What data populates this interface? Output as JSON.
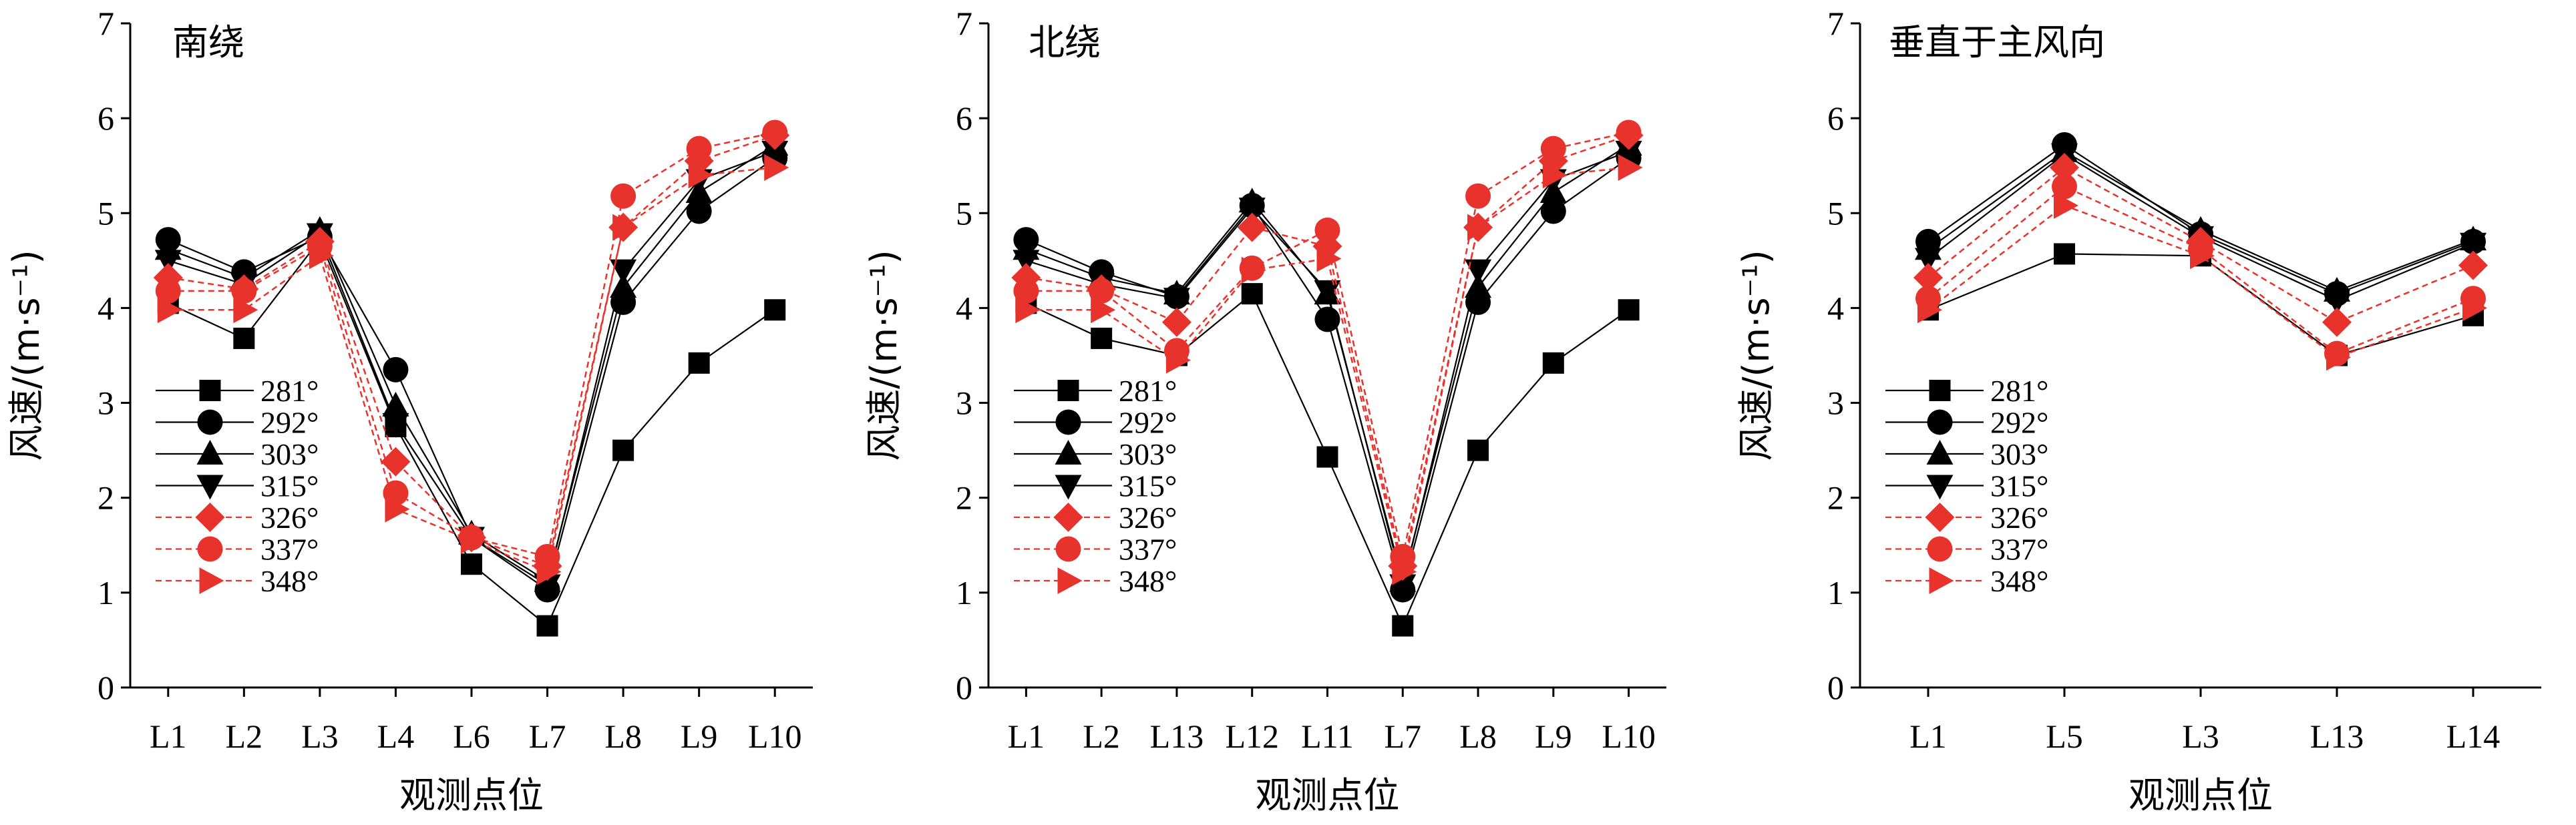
{
  "chart_data": [
    {
      "type": "line",
      "title": "南绕",
      "xlabel": "观测点位",
      "ylabel": "风速/(m·s⁻¹)",
      "ylim": [
        0,
        7
      ],
      "yticks": [
        0,
        1,
        2,
        3,
        4,
        5,
        6,
        7
      ],
      "categories": [
        "L1",
        "L2",
        "L3",
        "L4",
        "L6",
        "L7",
        "L8",
        "L9",
        "L10"
      ],
      "legend_position": "center-left",
      "series": [
        {
          "name": "281°",
          "color": "#000000",
          "marker": "square",
          "values": [
            4.05,
            3.68,
            4.72,
            2.75,
            1.3,
            0.65,
            2.5,
            3.42,
            3.98
          ]
        },
        {
          "name": "292°",
          "color": "#000000",
          "marker": "circle",
          "values": [
            4.72,
            4.38,
            4.75,
            3.35,
            1.58,
            1.03,
            4.06,
            5.02,
            5.58
          ]
        },
        {
          "name": "303°",
          "color": "#000000",
          "marker": "triangle-up",
          "values": [
            4.62,
            4.32,
            4.82,
            2.97,
            1.62,
            1.12,
            4.22,
            5.22,
            5.72
          ]
        },
        {
          "name": "315°",
          "color": "#000000",
          "marker": "triangle-down",
          "values": [
            4.5,
            4.25,
            4.78,
            2.78,
            1.58,
            1.08,
            4.4,
            5.35,
            5.65
          ]
        },
        {
          "name": "326°",
          "color": "#e8332d",
          "marker": "diamond",
          "values": [
            4.32,
            4.2,
            4.7,
            2.38,
            1.58,
            1.28,
            4.85,
            5.55,
            5.82
          ]
        },
        {
          "name": "337°",
          "color": "#e8332d",
          "marker": "circle",
          "values": [
            4.18,
            4.18,
            4.65,
            2.05,
            1.58,
            1.38,
            5.18,
            5.68,
            5.85
          ]
        },
        {
          "name": "348°",
          "color": "#e8332d",
          "marker": "triangle-right",
          "values": [
            3.98,
            3.98,
            4.55,
            1.88,
            1.55,
            1.22,
            4.85,
            5.4,
            5.48
          ]
        }
      ]
    },
    {
      "type": "line",
      "title": "北绕",
      "xlabel": "观测点位",
      "ylabel": "风速/(m·s⁻¹)",
      "ylim": [
        0,
        7
      ],
      "yticks": [
        0,
        1,
        2,
        3,
        4,
        5,
        6,
        7
      ],
      "categories": [
        "L1",
        "L2",
        "L13",
        "L12",
        "L11",
        "L7",
        "L8",
        "L9",
        "L10"
      ],
      "legend_position": "center-left",
      "series": [
        {
          "name": "281°",
          "color": "#000000",
          "marker": "square",
          "values": [
            4.05,
            3.68,
            3.5,
            4.15,
            2.43,
            0.65,
            2.5,
            3.42,
            3.98
          ]
        },
        {
          "name": "292°",
          "color": "#000000",
          "marker": "circle",
          "values": [
            4.72,
            4.38,
            4.12,
            5.08,
            3.88,
            1.03,
            4.06,
            5.02,
            5.58
          ]
        },
        {
          "name": "303°",
          "color": "#000000",
          "marker": "triangle-up",
          "values": [
            4.62,
            4.32,
            4.15,
            5.12,
            4.15,
            1.12,
            4.22,
            5.22,
            5.72
          ]
        },
        {
          "name": "315°",
          "color": "#000000",
          "marker": "triangle-down",
          "values": [
            4.5,
            4.25,
            4.1,
            5.05,
            4.18,
            1.08,
            4.4,
            5.35,
            5.65
          ]
        },
        {
          "name": "326°",
          "color": "#e8332d",
          "marker": "diamond",
          "values": [
            4.32,
            4.2,
            3.85,
            4.85,
            4.65,
            1.28,
            4.85,
            5.55,
            5.82
          ]
        },
        {
          "name": "337°",
          "color": "#e8332d",
          "marker": "circle",
          "values": [
            4.18,
            4.18,
            3.55,
            4.42,
            4.82,
            1.38,
            5.18,
            5.68,
            5.85
          ]
        },
        {
          "name": "348°",
          "color": "#e8332d",
          "marker": "triangle-right",
          "values": [
            3.98,
            3.98,
            3.45,
            4.4,
            4.52,
            1.22,
            4.85,
            5.4,
            5.48
          ]
        }
      ]
    },
    {
      "type": "line",
      "title": "垂直于主风向",
      "xlabel": "观测点位",
      "ylabel": "风速/(m·s⁻¹)",
      "ylim": [
        0,
        7
      ],
      "yticks": [
        0,
        1,
        2,
        3,
        4,
        5,
        6,
        7
      ],
      "categories": [
        "L1",
        "L5",
        "L3",
        "L13",
        "L14"
      ],
      "legend_position": "center-left",
      "series": [
        {
          "name": "281°",
          "color": "#000000",
          "marker": "square",
          "values": [
            3.98,
            4.57,
            4.55,
            3.5,
            3.92
          ]
        },
        {
          "name": "292°",
          "color": "#000000",
          "marker": "circle",
          "values": [
            4.7,
            5.72,
            4.78,
            4.15,
            4.7
          ]
        },
        {
          "name": "303°",
          "color": "#000000",
          "marker": "triangle-up",
          "values": [
            4.62,
            5.65,
            4.82,
            4.18,
            4.72
          ]
        },
        {
          "name": "315°",
          "color": "#000000",
          "marker": "triangle-down",
          "values": [
            4.52,
            5.62,
            4.75,
            4.08,
            4.68
          ]
        },
        {
          "name": "326°",
          "color": "#e8332d",
          "marker": "diamond",
          "values": [
            4.32,
            5.48,
            4.7,
            3.85,
            4.45
          ]
        },
        {
          "name": "337°",
          "color": "#e8332d",
          "marker": "circle",
          "values": [
            4.1,
            5.28,
            4.62,
            3.52,
            4.1
          ]
        },
        {
          "name": "348°",
          "color": "#e8332d",
          "marker": "triangle-right",
          "values": [
            3.98,
            5.08,
            4.55,
            3.48,
            4.0
          ]
        }
      ]
    }
  ]
}
